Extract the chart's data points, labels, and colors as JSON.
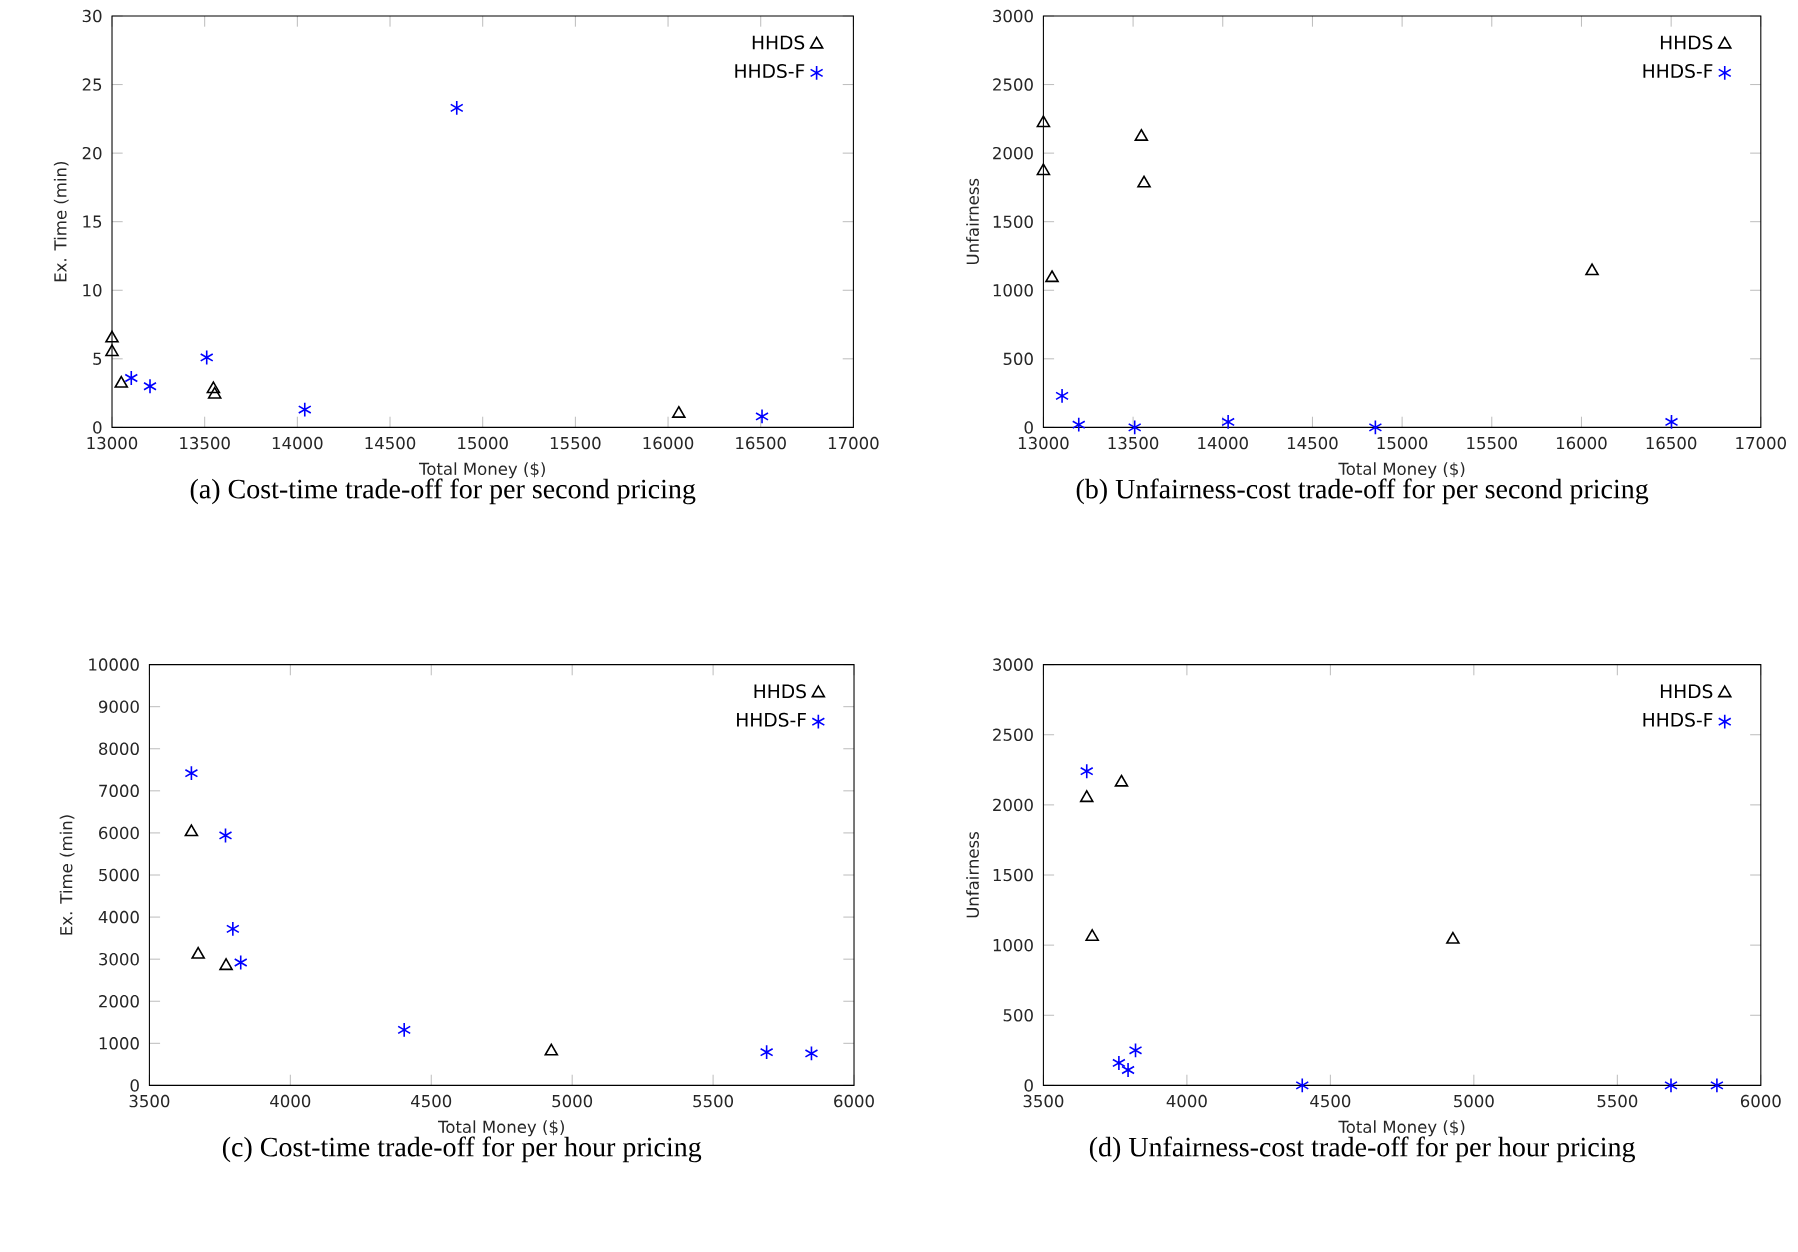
{
  "chart_data": [
    {
      "type": "scatter",
      "title": "(a) Cost-time trade-off for per second pricing",
      "xlabel": "Total Money ($)",
      "ylabel": "Ex. Time (min)",
      "xlim": [
        13000,
        17000
      ],
      "ylim": [
        0,
        30
      ],
      "xticks": [
        13000,
        13500,
        14000,
        14500,
        15000,
        15500,
        16000,
        16500,
        17000
      ],
      "yticks": [
        0,
        5,
        10,
        15,
        20,
        25,
        30
      ],
      "legend": "top right",
      "series": [
        {
          "name": "HHDS",
          "color": "#000000",
          "marker": "triangle",
          "x": [
            13000,
            13000,
            13050,
            13547,
            13554,
            16058
          ],
          "values": [
            6.5,
            5.5,
            3.2,
            2.8,
            2.4,
            1.0
          ]
        },
        {
          "name": "HHDS-F",
          "color": "#0000ff",
          "marker": "cross",
          "x": [
            13104,
            13205,
            13511,
            14040,
            14860,
            16507
          ],
          "values": [
            3.6,
            3.0,
            5.1,
            1.3,
            23.3,
            0.8
          ]
        }
      ]
    },
    {
      "type": "scatter",
      "title": "(b) Unfairness-cost trade-off for per second pricing",
      "xlabel": "Total Money ($)",
      "ylabel": "Unfairness",
      "xlim": [
        13000,
        17000
      ],
      "ylim": [
        0,
        3000
      ],
      "xticks": [
        13000,
        13500,
        14000,
        14500,
        15000,
        15500,
        16000,
        16500,
        17000
      ],
      "yticks": [
        0,
        500,
        1000,
        1500,
        2000,
        2500,
        3000
      ],
      "legend": "top right",
      "series": [
        {
          "name": "HHDS",
          "color": "#000000",
          "marker": "triangle",
          "x": [
            13000,
            13000,
            13048,
            13546,
            13561,
            16059
          ],
          "values": [
            2220,
            1870,
            1090,
            2120,
            1780,
            1140
          ]
        },
        {
          "name": "HHDS-F",
          "color": "#0000ff",
          "marker": "cross",
          "x": [
            13104,
            13197,
            13509,
            14030,
            14851,
            16502
          ],
          "values": [
            230,
            20,
            0,
            40,
            0,
            40
          ]
        }
      ]
    },
    {
      "type": "scatter",
      "title": "(c) Cost-time trade-off for per hour pricing",
      "xlabel": "Total Money ($)",
      "ylabel": "Ex. Time (min)",
      "xlim": [
        3500,
        6000
      ],
      "ylim": [
        0,
        10000
      ],
      "xticks": [
        3500,
        4000,
        4500,
        5000,
        5500,
        6000
      ],
      "yticks": [
        0,
        1000,
        2000,
        3000,
        4000,
        5000,
        6000,
        7000,
        8000,
        9000,
        10000
      ],
      "legend": "top right",
      "series": [
        {
          "name": "HHDS",
          "color": "#000000",
          "marker": "triangle",
          "x": [
            3649,
            3673,
            3772,
            4926
          ],
          "values": [
            6020,
            3110,
            2840,
            810
          ]
        },
        {
          "name": "HHDS-F",
          "color": "#0000ff",
          "marker": "cross",
          "x": [
            3649,
            3770,
            3796,
            3824,
            4404,
            5690,
            5849
          ],
          "values": [
            7420,
            5940,
            3720,
            2920,
            1320,
            790,
            760
          ]
        }
      ]
    },
    {
      "type": "scatter",
      "title": "(d) Unfairness-cost trade-off for per hour pricing",
      "xlabel": "Total Money ($)",
      "ylabel": "Unfairness",
      "xlim": [
        3500,
        6000
      ],
      "ylim": [
        0,
        3000
      ],
      "xticks": [
        3500,
        4000,
        4500,
        5000,
        5500,
        6000
      ],
      "yticks": [
        0,
        500,
        1000,
        1500,
        2000,
        2500,
        3000
      ],
      "legend": "top right",
      "series": [
        {
          "name": "HHDS",
          "color": "#000000",
          "marker": "triangle",
          "x": [
            3651,
            3772,
            3670,
            4927
          ],
          "values": [
            2050,
            2160,
            1060,
            1040
          ]
        },
        {
          "name": "HHDS-F",
          "color": "#0000ff",
          "marker": "cross",
          "x": [
            3651,
            3763,
            3795,
            3821,
            4402,
            5687,
            5847
          ],
          "values": [
            2240,
            160,
            110,
            250,
            0,
            0,
            0
          ]
        }
      ]
    }
  ]
}
